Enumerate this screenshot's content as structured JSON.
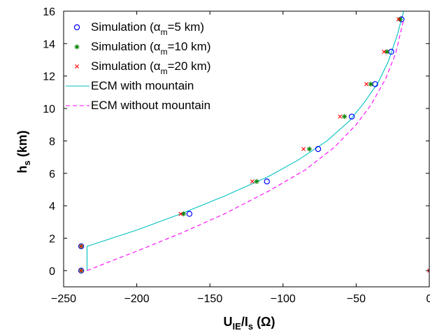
{
  "chart_data": {
    "type": "scatter",
    "title": "",
    "xlabel": {
      "main": "U",
      "sub": "IE",
      "rest": "/I",
      "sub2": "s",
      "unit": " (Ω)"
    },
    "ylabel": {
      "main": "h",
      "sub": "s",
      "unit": " (km)"
    },
    "xlim": [
      -250,
      0
    ],
    "ylim": [
      -1,
      16
    ],
    "xticks": [
      -250,
      -200,
      -150,
      -100,
      -50,
      0
    ],
    "xtick_labels": [
      "−250",
      "−200",
      "−150",
      "−100",
      "−50",
      "0"
    ],
    "yticks": [
      0,
      2,
      4,
      6,
      8,
      10,
      12,
      14,
      16
    ],
    "ytick_labels": [
      "0",
      "2",
      "4",
      "6",
      "8",
      "10",
      "12",
      "14",
      "16"
    ],
    "grid": false,
    "legend_position": "top-left",
    "series": [
      {
        "name_main": "Simulation (α",
        "name_sub": "m",
        "name_rest": "=5 km)",
        "kind": "points",
        "marker": "circle",
        "color": "#0000ff",
        "x": [
          -238,
          -238,
          -164,
          -111,
          -76,
          -53,
          -37,
          -26,
          -19
        ],
        "y": [
          0,
          1.5,
          3.5,
          5.5,
          7.5,
          9.5,
          11.5,
          13.5,
          15.5
        ]
      },
      {
        "name_main": "Simulation (α",
        "name_sub": "m",
        "name_rest": "=10 km)",
        "kind": "points",
        "marker": "star",
        "color": "#008000",
        "x": [
          -238,
          -238,
          -168,
          -118,
          -82,
          -58,
          -40,
          -29,
          -20
        ],
        "y": [
          0,
          1.5,
          3.5,
          5.5,
          7.5,
          9.5,
          11.5,
          13.5,
          15.5
        ]
      },
      {
        "name_main": "Simulation (α",
        "name_sub": "m",
        "name_rest": "=20 km)",
        "kind": "points",
        "marker": "x",
        "color": "#ff0000",
        "x": [
          -238,
          -238,
          -170,
          -121,
          -86,
          -61,
          -43,
          -31,
          -21
        ],
        "y": [
          0,
          1.5,
          3.5,
          5.5,
          7.5,
          9.5,
          11.5,
          13.5,
          15.5
        ]
      },
      {
        "name_main": "ECM with mountain",
        "name_sub": "",
        "name_rest": "",
        "kind": "line",
        "dash": "solid",
        "color": "#00c0c0",
        "x": [
          -234,
          -234,
          -200,
          -170,
          -140,
          -110,
          -90,
          -70,
          -55,
          -45,
          -35,
          -28,
          -22,
          -17.5
        ],
        "y": [
          0,
          1.5,
          2.5,
          3.5,
          4.6,
          5.8,
          6.8,
          8.0,
          9.2,
          10.3,
          11.6,
          12.9,
          14.5,
          16.0
        ]
      },
      {
        "name_main": "ECM without mountain",
        "name_sub": "",
        "name_rest": "",
        "kind": "line",
        "dash": "dashed",
        "color": "#ff00ff",
        "x": [
          -234,
          -220,
          -200,
          -170,
          -140,
          -110,
          -85,
          -65,
          -50,
          -40,
          -30,
          -23,
          -17.5
        ],
        "y": [
          0,
          0.5,
          1.2,
          2.3,
          3.5,
          4.9,
          6.2,
          7.6,
          9.0,
          10.2,
          11.8,
          13.4,
          15.5
        ]
      }
    ],
    "extra_points": [
      {
        "series": 2,
        "x": 0,
        "y": 0
      }
    ]
  }
}
